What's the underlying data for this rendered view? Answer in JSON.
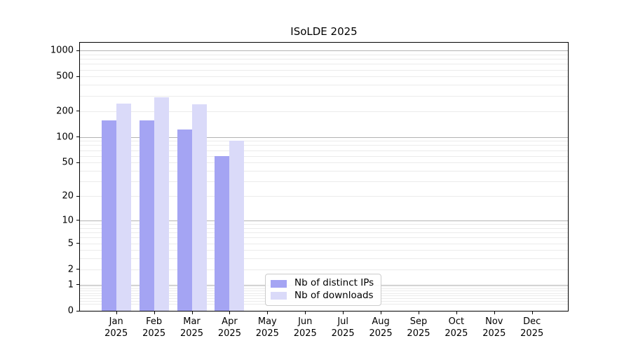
{
  "chart_data": {
    "type": "bar",
    "title": "ISoLDE 2025",
    "categories": [
      "Jan",
      "Feb",
      "Mar",
      "Apr",
      "May",
      "Jun",
      "Jul",
      "Aug",
      "Sep",
      "Oct",
      "Nov",
      "Dec"
    ],
    "year_label": "2025",
    "series": [
      {
        "name": "Nb of distinct IPs",
        "color": "#a4a4f3",
        "values": [
          155,
          155,
          123,
          60,
          null,
          null,
          null,
          null,
          null,
          null,
          null,
          null
        ]
      },
      {
        "name": "Nb of downloads",
        "color": "#dadaf9",
        "values": [
          243,
          290,
          240,
          91,
          null,
          null,
          null,
          null,
          null,
          null,
          null,
          null
        ]
      }
    ],
    "yscale": "log10(value+1)",
    "ylim": [
      0,
      1228
    ],
    "y_tick_labels": [
      0,
      1,
      2,
      5,
      10,
      20,
      50,
      100,
      200,
      500,
      1000
    ],
    "grid": {
      "major_values": [
        1,
        10,
        100,
        1000
      ],
      "major_color": "#b3b3b3",
      "minor_color": "#ebebeb"
    },
    "legend": {
      "position": "lower-center",
      "border_color": "#cccccc"
    }
  }
}
